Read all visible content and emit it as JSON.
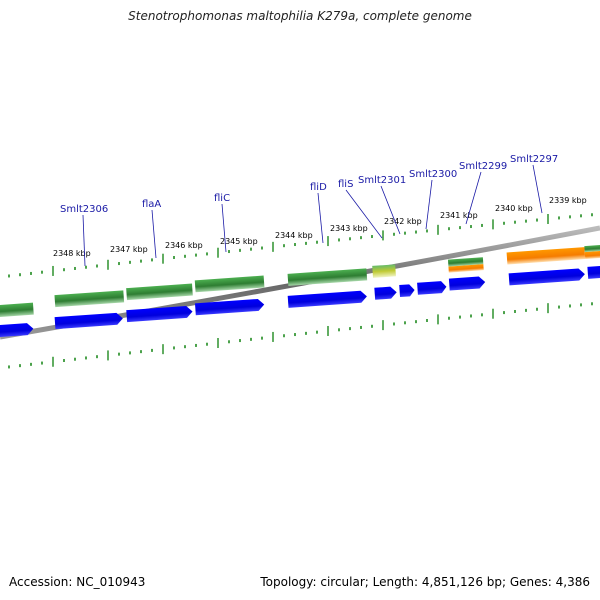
{
  "title": "Stenotrophomonas maltophilia K279a, complete genome",
  "footer": {
    "accession": "Accession: NC_010943",
    "summary": "Topology: circular; Length: 4,851,126 bp; Genes: 4,386"
  },
  "colors": {
    "background": "#ffffff",
    "cds_blue": "#0000ee",
    "gene_green": "#2e8b2e",
    "gene_orange": "#f39c1e",
    "gene_lightgreen": "#9acd32",
    "ticks_green": "#1f8a1f",
    "backbone_gray": "#777777",
    "label_blue": "#1a1aa6"
  },
  "tick_labels": [
    "2348 kbp",
    "2347 kbp",
    "2346 kbp",
    "2345 kbp",
    "2344 kbp",
    "2343 kbp",
    "2342 kbp",
    "2341 kbp",
    "2340 kbp",
    "2339 kbp"
  ],
  "gene_labels": [
    "Smlt2306",
    "flaA",
    "fliC",
    "fliD",
    "fliS",
    "Smlt2301",
    "Smlt2300",
    "Smlt2299",
    "Smlt2297"
  ]
}
